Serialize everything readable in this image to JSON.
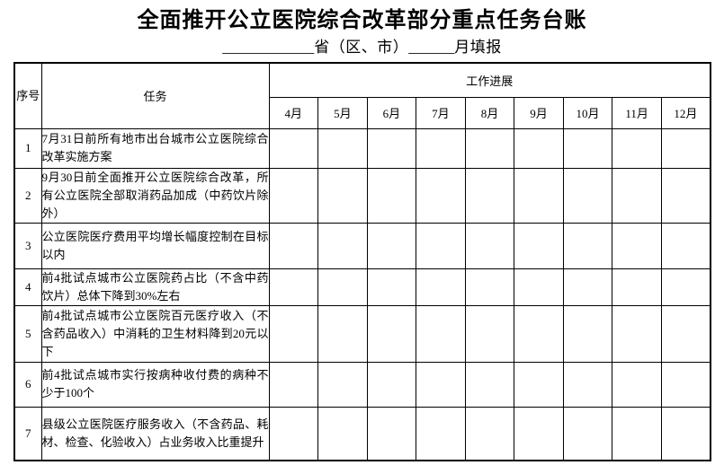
{
  "title": "全面推开公立医院综合改革部分重点任务台账",
  "subtitle": {
    "blank_province": "____________",
    "province_label": "省（区、市）",
    "blank_month": "______",
    "suffix": "月填报"
  },
  "table": {
    "headers": {
      "index": "序号",
      "task": "任务",
      "progress": "工作进展",
      "months": [
        "4月",
        "5月",
        "6月",
        "7月",
        "8月",
        "9月",
        "10月",
        "11月",
        "12月"
      ]
    },
    "rows": [
      {
        "index": "1",
        "task": "7月31日前所有地市出台城市公立医院综合改革实施方案"
      },
      {
        "index": "2",
        "task": "9月30日前全面推开公立医院综合改革，所有公立医院全部取消药品加成（中药饮片除外）"
      },
      {
        "index": "3",
        "task": "公立医院医疗费用平均增长幅度控制在目标以内"
      },
      {
        "index": "4",
        "task": "前4批试点城市公立医院药占比（不含中药饮片）总体下降到30%左右"
      },
      {
        "index": "5",
        "task": "前4批试点城市公立医院百元医疗收入（不含药品收入）中消耗的卫生材料降到20元以下"
      },
      {
        "index": "6",
        "task": "前4批试点城市实行按病种收付费的病种不少于100个"
      },
      {
        "index": "7",
        "task": "县级公立医院医疗服务收入（不含药品、耗材、检查、化验收入）占业务收入比重提升"
      }
    ]
  },
  "colors": {
    "border": "#000000",
    "text": "#000000",
    "background": "#ffffff"
  }
}
